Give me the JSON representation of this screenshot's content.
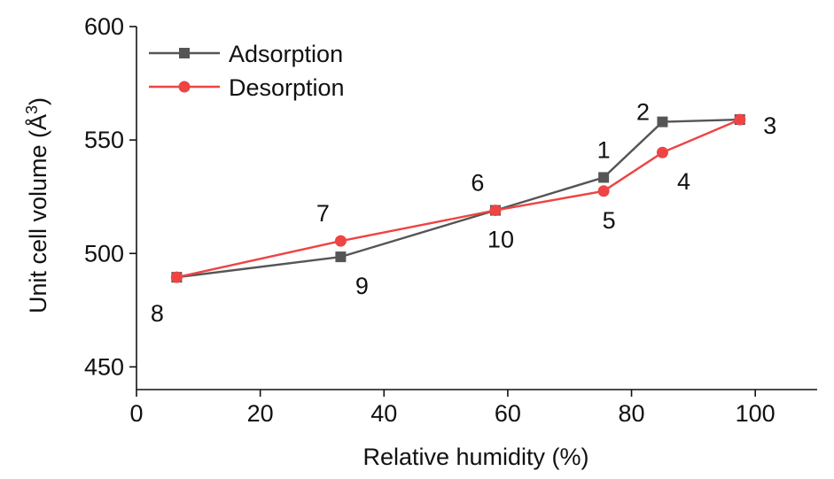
{
  "chart_data": {
    "type": "line",
    "xlabel": "Relative humidity (%)",
    "ylabel_main": "Unit cell volume (Å",
    "ylabel_sup": "3",
    "ylabel_close": ")",
    "xlim": [
      0,
      110
    ],
    "ylim": [
      440,
      600
    ],
    "xticks": [
      0,
      20,
      40,
      60,
      80,
      100
    ],
    "yticks": [
      450,
      500,
      550,
      600
    ],
    "legend_position": "top-left",
    "grid": false,
    "series": [
      {
        "name": "Adsorption",
        "color": "#555555",
        "marker": "square",
        "points": [
          {
            "x": 6.5,
            "y": 489.5
          },
          {
            "x": 33,
            "y": 498.5
          },
          {
            "x": 58,
            "y": 519
          },
          {
            "x": 75.5,
            "y": 533.5
          },
          {
            "x": 85,
            "y": 558
          },
          {
            "x": 97.5,
            "y": 559
          }
        ]
      },
      {
        "name": "Desorption",
        "color": "#ee4444",
        "marker": "circle",
        "points": [
          {
            "x": 97.5,
            "y": 559
          },
          {
            "x": 85,
            "y": 544.5
          },
          {
            "x": 75.5,
            "y": 527.5
          },
          {
            "x": 58,
            "y": 519
          },
          {
            "x": 33,
            "y": 505.5
          },
          {
            "x": 6.5,
            "y": 489.5
          }
        ]
      }
    ],
    "annotations": [
      {
        "text": "1",
        "x": 75.5,
        "y": 533.5,
        "pos": "above"
      },
      {
        "text": "2",
        "x": 85,
        "y": 558,
        "pos": "left"
      },
      {
        "text": "3",
        "x": 97.5,
        "y": 559,
        "pos": "right"
      },
      {
        "text": "4",
        "x": 85,
        "y": 544.5,
        "pos": "below-right"
      },
      {
        "text": "5",
        "x": 75.5,
        "y": 527.5,
        "pos": "below"
      },
      {
        "text": "6",
        "x": 58,
        "y": 519,
        "pos": "above-left"
      },
      {
        "text": "7",
        "x": 33,
        "y": 505.5,
        "pos": "above-left"
      },
      {
        "text": "8",
        "x": 6.5,
        "y": 489.5,
        "pos": "below-left"
      },
      {
        "text": "9",
        "x": 33,
        "y": 498.5,
        "pos": "below-right"
      },
      {
        "text": "10",
        "x": 58,
        "y": 519,
        "pos": "below"
      }
    ]
  }
}
